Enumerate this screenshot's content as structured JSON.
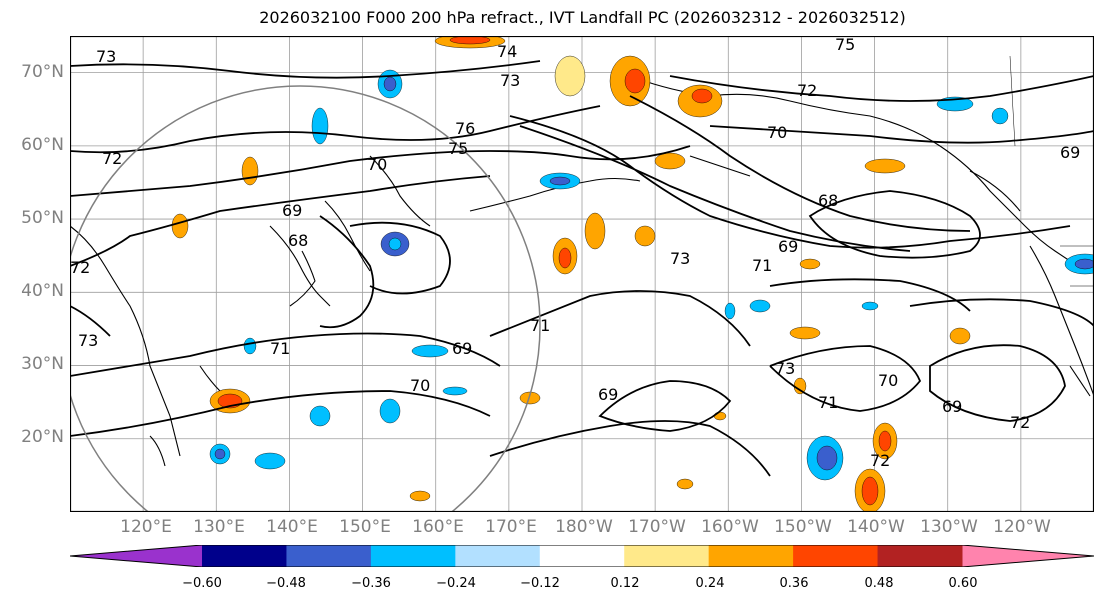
{
  "title": "2026032100 F000 200 hPa refract., IVT Landfall PC (2026032312 - 2026032512)",
  "lat_labels": [
    "70°N",
    "60°N",
    "50°N",
    "40°N",
    "30°N",
    "20°N"
  ],
  "lon_labels": [
    "120°E",
    "130°E",
    "140°E",
    "150°E",
    "160°E",
    "170°E",
    "180°W",
    "170°W",
    "160°W",
    "150°W",
    "140°W",
    "130°W",
    "120°W"
  ],
  "contour_labels": [
    "73",
    "74",
    "75",
    "73",
    "72",
    "72",
    "70",
    "76",
    "75",
    "70",
    "72",
    "68",
    "69",
    "68",
    "69",
    "73",
    "71",
    "71",
    "69",
    "70",
    "71",
    "69",
    "73",
    "71",
    "70",
    "69",
    "72",
    "72",
    "73",
    "69"
  ],
  "colorbar": {
    "ticks": [
      "−0.60",
      "−0.48",
      "−0.36",
      "−0.24",
      "−0.12",
      "0.12",
      "0.24",
      "0.36",
      "0.48",
      "0.60"
    ],
    "colors": [
      "#9a32cd",
      "#00008b",
      "#3a5fcd",
      "#00bfff",
      "#b2e0ff",
      "#ffffff",
      "#ffe98a",
      "#ffa500",
      "#ff4500",
      "#b22222",
      "#ff83ad"
    ],
    "extend": "both"
  },
  "map": {
    "lat_range": [
      10,
      75
    ],
    "lon_range_deg_east": [
      110,
      250
    ],
    "grid": true
  }
}
